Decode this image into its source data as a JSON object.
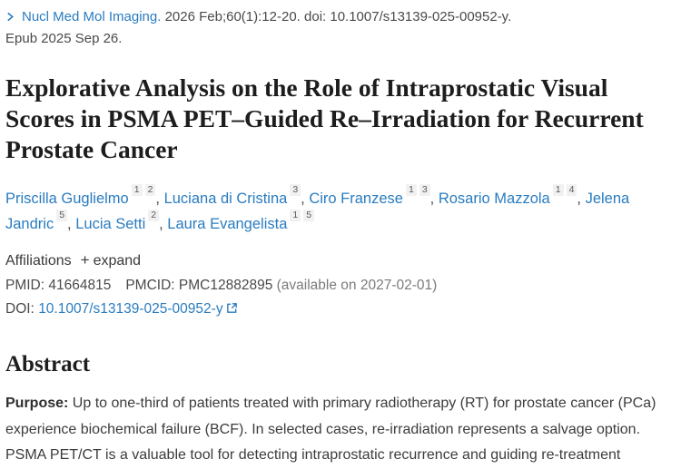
{
  "colors": {
    "link": "#2a7cc0",
    "text": "#3e3e3e",
    "muted": "#7b7b7b",
    "title": "#1d1d1d",
    "sup_bg": "#f1f1f1",
    "sup_text": "#5a5a5a"
  },
  "journal": {
    "name": "Nucl Med Mol Imaging.",
    "citation": " 2026 Feb;60(1):12-20. doi: 10.1007/s13139-025-00952-y.",
    "epub": "Epub 2025 Sep 26."
  },
  "title": "Explorative Analysis on the Role of Intraprostatic Visual Scores in PSMA PET–Guided Re–Irradiation for Recurrent Prostate Cancer",
  "authors": [
    {
      "name": "Priscilla Guglielmo",
      "affiliations": [
        "1",
        "2"
      ]
    },
    {
      "name": "Luciana di Cristina",
      "affiliations": [
        "3"
      ]
    },
    {
      "name": "Ciro Franzese",
      "affiliations": [
        "1",
        "3"
      ]
    },
    {
      "name": "Rosario Mazzola",
      "affiliations": [
        "1",
        "4"
      ]
    },
    {
      "name": "Jelena Jandric",
      "affiliations": [
        "5"
      ]
    },
    {
      "name": "Lucia Setti",
      "affiliations": [
        "2"
      ]
    },
    {
      "name": "Laura Evangelista",
      "affiliations": [
        "1",
        "5"
      ]
    }
  ],
  "affiliations_row": {
    "label": "Affiliations",
    "plus": "+",
    "expand_label": "expand"
  },
  "identifiers": {
    "pmid_label": "PMID:",
    "pmid": "41664815",
    "pmcid_label": "PMCID:",
    "pmcid": "PMC12882895",
    "pmcid_note": "(available on 2027-02-01)",
    "doi_label": "DOI:",
    "doi": "10.1007/s13139-025-00952-y"
  },
  "abstract": {
    "heading": "Abstract",
    "purpose_label": "Purpose:",
    "purpose_text": "Up to one-third of patients treated with primary radiotherapy (RT) for prostate cancer (PCa) experience biochemical failure (BCF). In selected cases, re-irradiation represents a salvage option. PSMA PET/CT is a valuable tool for detecting intraprostatic recurrence and guiding re-treatment"
  }
}
